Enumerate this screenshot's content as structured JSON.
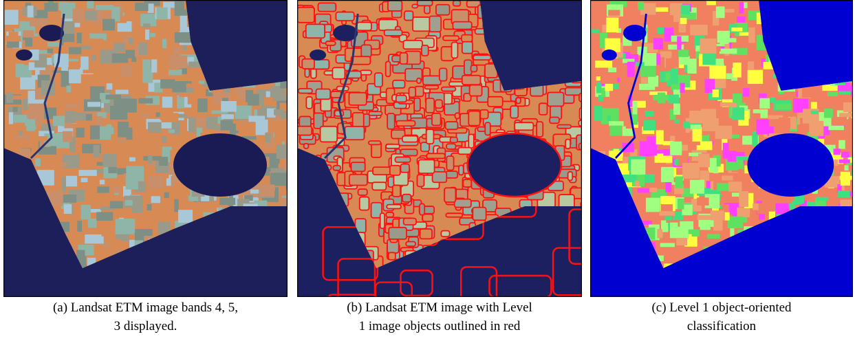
{
  "panels": [
    {
      "caption_lines": [
        "(a) Landsat ETM image bands 4, 5,",
        "3 displayed."
      ]
    },
    {
      "caption_lines": [
        "(b) Landsat ETM image with Level",
        "1 image objects outlined in red"
      ]
    },
    {
      "caption_lines": [
        "(c) Level 1 object-oriented",
        "classification"
      ]
    }
  ]
}
